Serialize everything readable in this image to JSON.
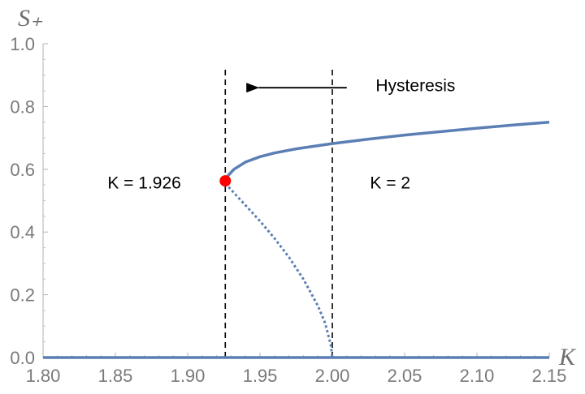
{
  "chart_data": {
    "type": "line",
    "title": "",
    "xlabel": "K",
    "ylabel": "S₊",
    "xlim": [
      1.8,
      2.15
    ],
    "ylim": [
      0.0,
      1.0
    ],
    "x_ticks": [
      "1.80",
      "1.85",
      "1.90",
      "1.95",
      "2.00",
      "2.05",
      "2.10",
      "2.15"
    ],
    "y_ticks": [
      "0.0",
      "0.2",
      "0.4",
      "0.6",
      "0.8",
      "1.0"
    ],
    "grid": false,
    "legend": "none",
    "series": [
      {
        "style": "solid",
        "color": "#5b7fb4",
        "x": [
          1.8,
          2.15
        ],
        "y": [
          0.0,
          0.0
        ]
      },
      {
        "style": "solid",
        "color": "#5b7fb4",
        "x": [
          1.926,
          1.928,
          1.932,
          1.94,
          1.95,
          1.96,
          1.975,
          2.0,
          2.025,
          2.05,
          2.075,
          2.1,
          2.125,
          2.15
        ],
        "y": [
          0.567,
          0.58,
          0.6,
          0.623,
          0.64,
          0.652,
          0.665,
          0.682,
          0.696,
          0.709,
          0.72,
          0.731,
          0.741,
          0.75
        ]
      },
      {
        "style": "dotted",
        "color": "#5b7fb4",
        "x": [
          1.926,
          1.93,
          1.94,
          1.95,
          1.96,
          1.97,
          1.98,
          1.99,
          1.995,
          1.999,
          2.0
        ],
        "y": [
          0.555,
          0.535,
          0.485,
          0.435,
          0.38,
          0.32,
          0.25,
          0.165,
          0.11,
          0.04,
          0.0
        ]
      }
    ],
    "vlines": [
      {
        "x": 1.926,
        "style": "dashed",
        "color": "#000000"
      },
      {
        "x": 2.0,
        "style": "dashed",
        "color": "#000000"
      }
    ],
    "point": {
      "x": 1.926,
      "y": 0.563,
      "color": "#ff0000"
    },
    "annotations": [
      {
        "text": "K = 1.926",
        "x": 1.87,
        "y": 0.56
      },
      {
        "text": "K = 2",
        "x": 2.04,
        "y": 0.56
      },
      {
        "text": "Hysteresis",
        "x": 2.03,
        "y": 0.87
      }
    ],
    "arrow": {
      "from": [
        2.01,
        0.86
      ],
      "to": [
        1.94,
        0.86
      ],
      "color": "#000000"
    }
  }
}
